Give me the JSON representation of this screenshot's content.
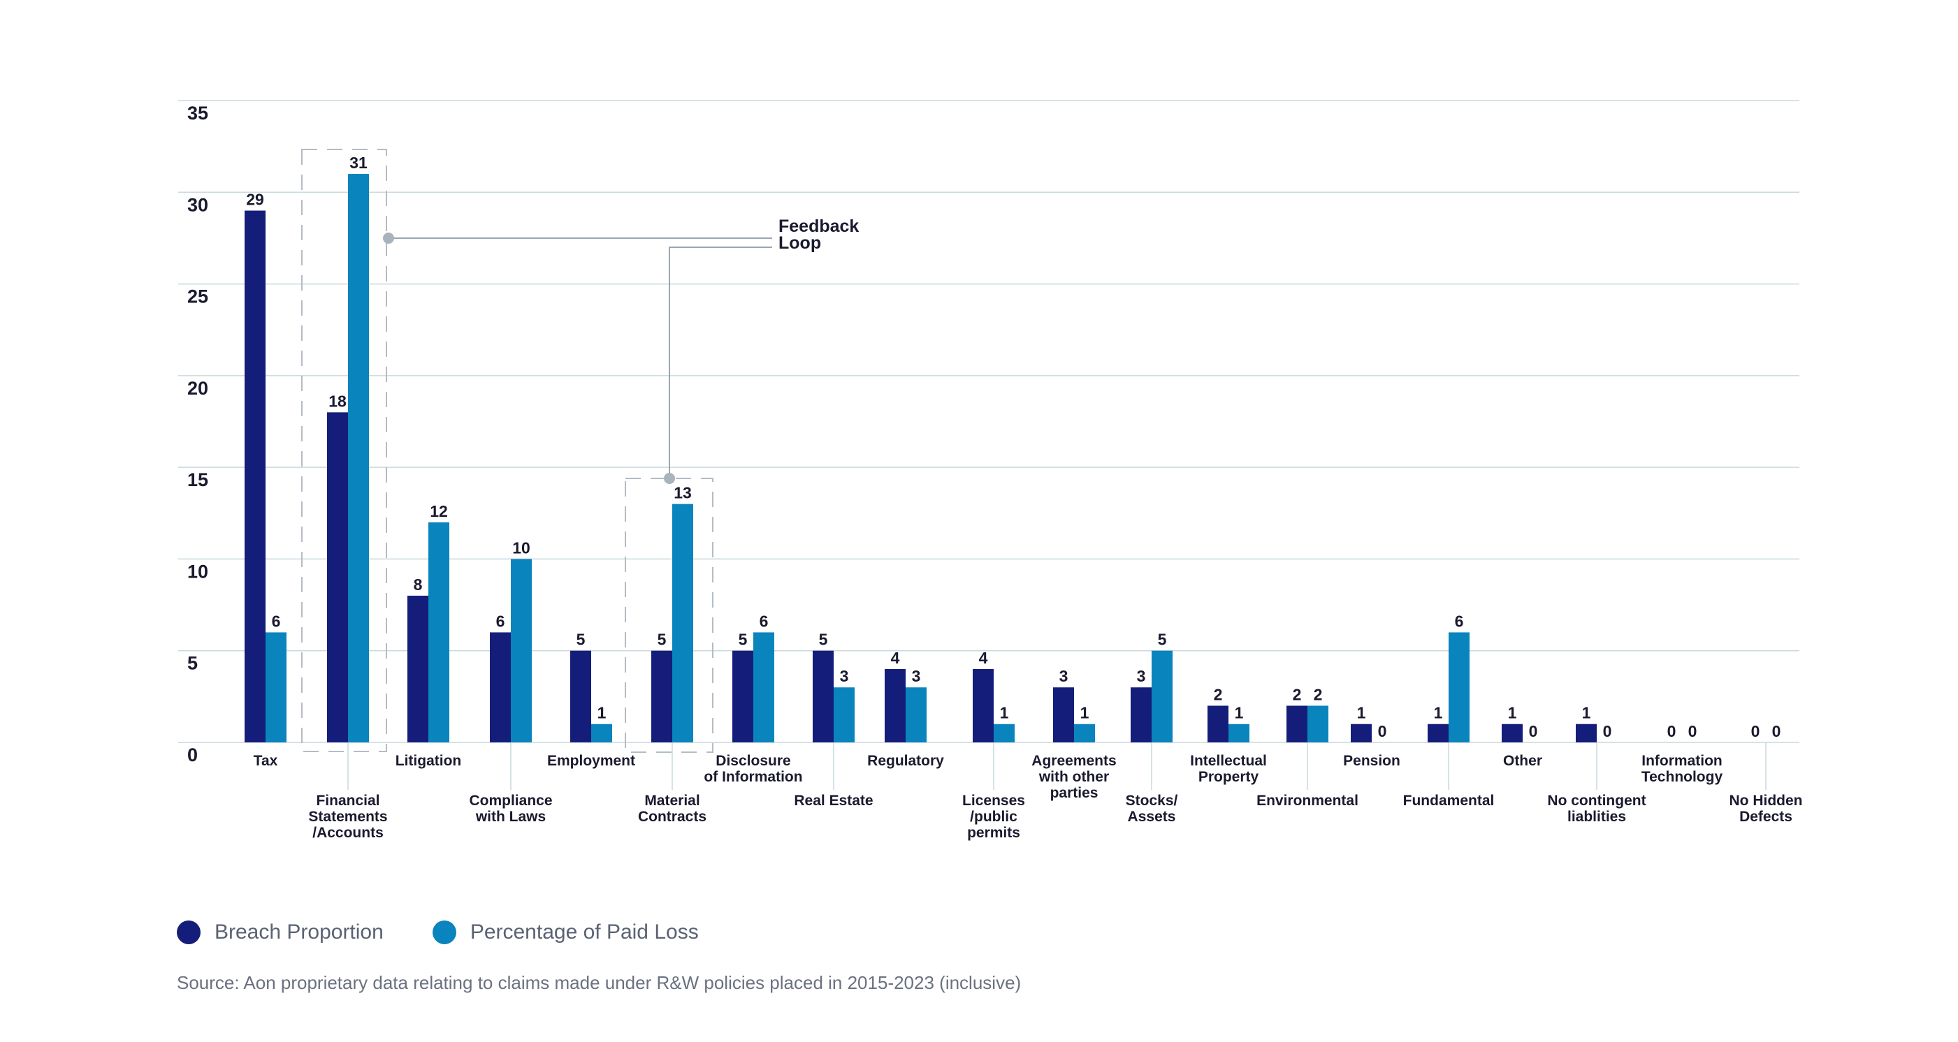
{
  "chart_data": {
    "type": "bar",
    "title": "",
    "xlabel": "",
    "ylabel": "",
    "ylim": [
      0,
      35
    ],
    "y_ticks": [
      "0",
      "5",
      "10",
      "15",
      "20",
      "25",
      "30",
      "35"
    ],
    "grid": true,
    "legend_position": "bottom-left",
    "categories": [
      [
        "Tax"
      ],
      [
        "Financial",
        "Statements",
        "/Accounts"
      ],
      [
        "Litigation"
      ],
      [
        "Compliance",
        "with Laws"
      ],
      [
        "Employment"
      ],
      [
        "Material",
        "Contracts"
      ],
      [
        "Disclosure",
        "of Information"
      ],
      [
        "Real Estate"
      ],
      [
        "Regulatory"
      ],
      [
        "Licenses",
        "/public",
        "permits"
      ],
      [
        "Agreements",
        "with other",
        "parties"
      ],
      [
        "Stocks/",
        "Assets"
      ],
      [
        "Intellectual",
        "Property"
      ],
      [
        "Environmental"
      ],
      [
        "Pension"
      ],
      [
        "Fundamental"
      ],
      [
        "Other"
      ],
      [
        "No contingent",
        "liablities"
      ],
      [
        "Information",
        "Technology"
      ],
      [
        "No Hidden",
        "Defects"
      ]
    ],
    "series": [
      {
        "name": "Breach Proportion",
        "color": "#141e7a",
        "values": [
          29,
          18,
          8,
          6,
          5,
          5,
          5,
          5,
          4,
          4,
          3,
          3,
          2,
          2,
          1,
          1,
          1,
          1,
          0,
          0
        ]
      },
      {
        "name": "Percentage of Paid Loss",
        "color": "#0a84bd",
        "values": [
          6,
          31,
          12,
          10,
          1,
          13,
          6,
          3,
          3,
          1,
          1,
          5,
          1,
          2,
          0,
          6,
          0,
          0,
          0,
          0
        ]
      }
    ],
    "annotation": {
      "lines": [
        "Feedback",
        "Loop"
      ],
      "highlighted_categories": [
        "Financial Statements /Accounts",
        "Material Contracts"
      ]
    },
    "source": "Source: Aon proprietary data relating to claims made under R&W policies placed in 2015-2023 (inclusive)"
  },
  "colors": {
    "grid": "#c9d9dd",
    "dashed_box": "#b4bcc4",
    "annotation_line": "#9aa6b0",
    "annotation_dot": "#a8b3bb",
    "text": "#1a1a2e"
  }
}
